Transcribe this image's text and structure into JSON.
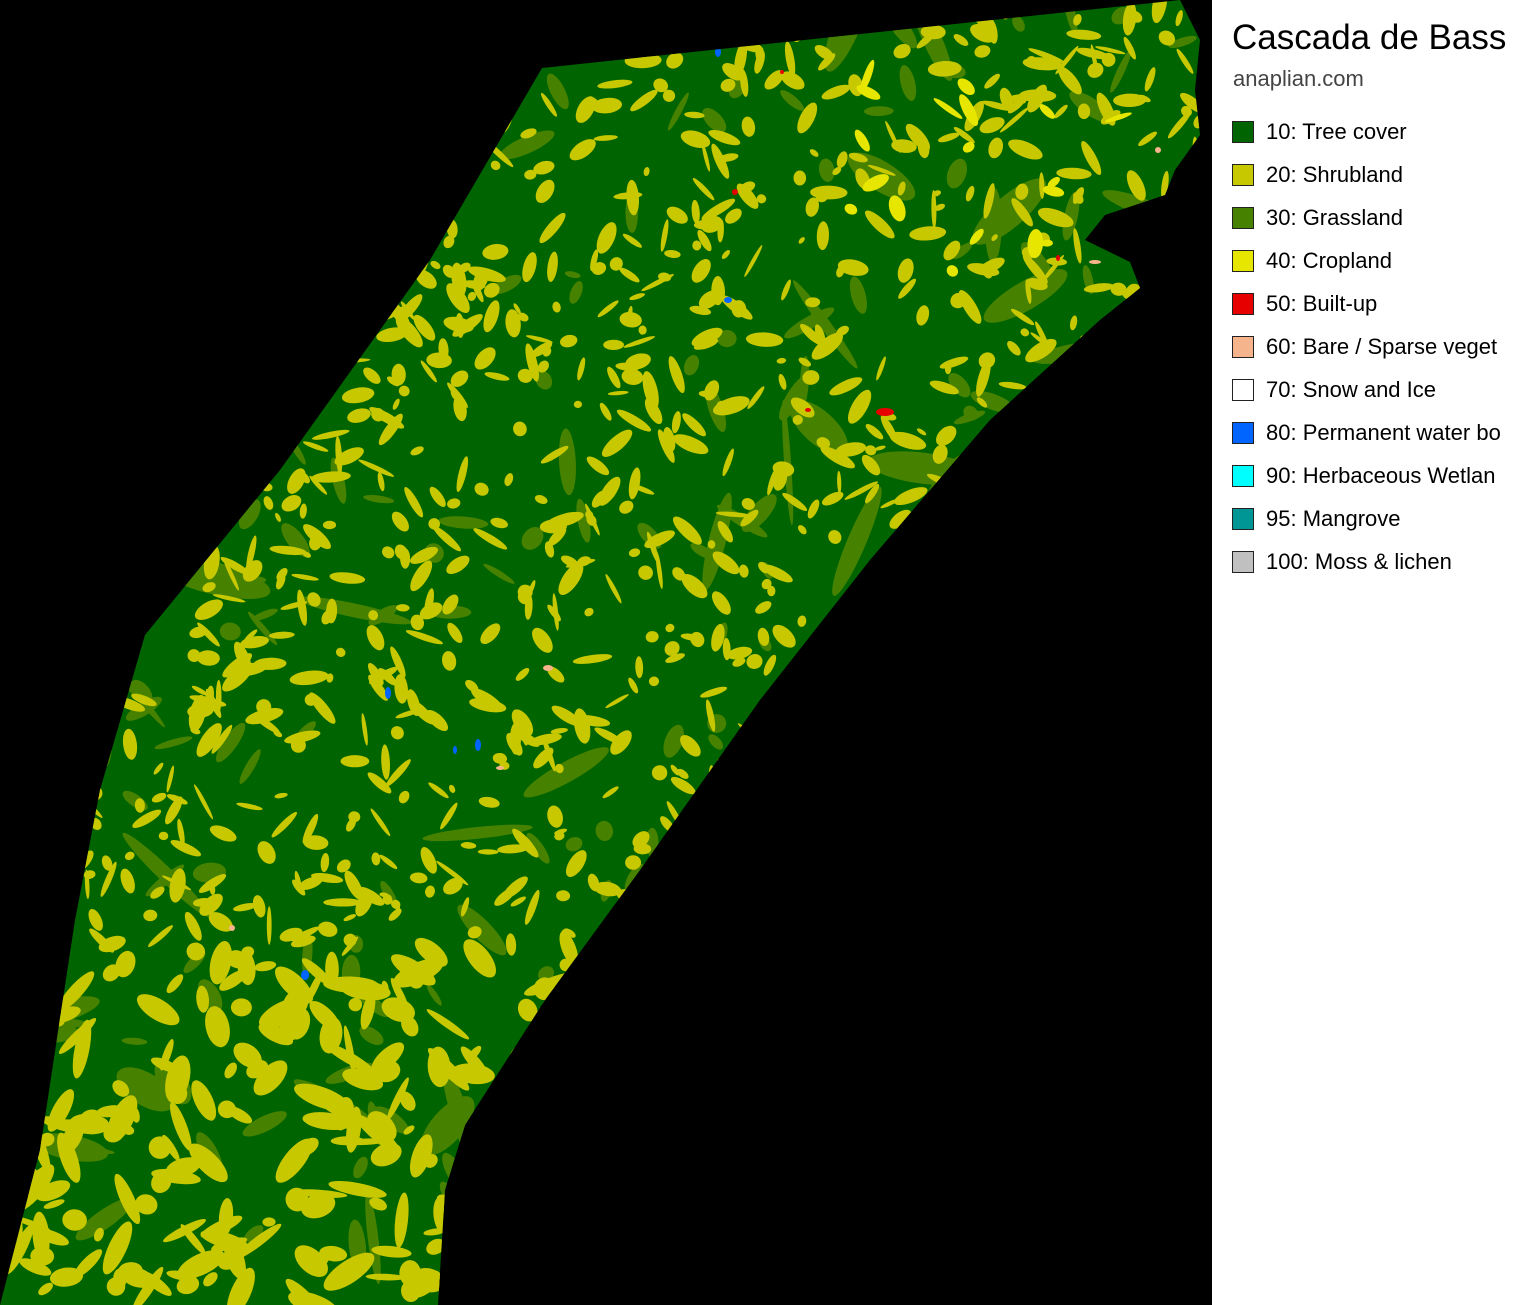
{
  "map": {
    "background_color": "#000000",
    "base_class_color": "#006400",
    "features": [
      {
        "kind": "water",
        "color": "#0064ff"
      },
      {
        "kind": "built-up",
        "color": "#e60000"
      },
      {
        "kind": "bare",
        "color": "#f5b48c"
      }
    ]
  },
  "legend": {
    "title": "Cascada de Bass",
    "source": "anaplian.com",
    "items": [
      {
        "label": "10: Tree cover",
        "color": "#006400"
      },
      {
        "label": "20: Shrubland",
        "color": "#c8c800"
      },
      {
        "label": "30: Grassland",
        "color": "#468200"
      },
      {
        "label": "40: Cropland",
        "color": "#e6e600"
      },
      {
        "label": "50: Built-up",
        "color": "#e60000"
      },
      {
        "label": "60: Bare / Sparse veget",
        "color": "#f5b48c"
      },
      {
        "label": "70: Snow and Ice",
        "color": "#ffffff"
      },
      {
        "label": "80: Permanent water bo",
        "color": "#0064ff"
      },
      {
        "label": "90: Herbaceous Wetlan",
        "color": "#00ffff"
      },
      {
        "label": "95: Mangrove",
        "color": "#009696"
      },
      {
        "label": "100: Moss & lichen",
        "color": "#c0c0c0"
      }
    ]
  }
}
